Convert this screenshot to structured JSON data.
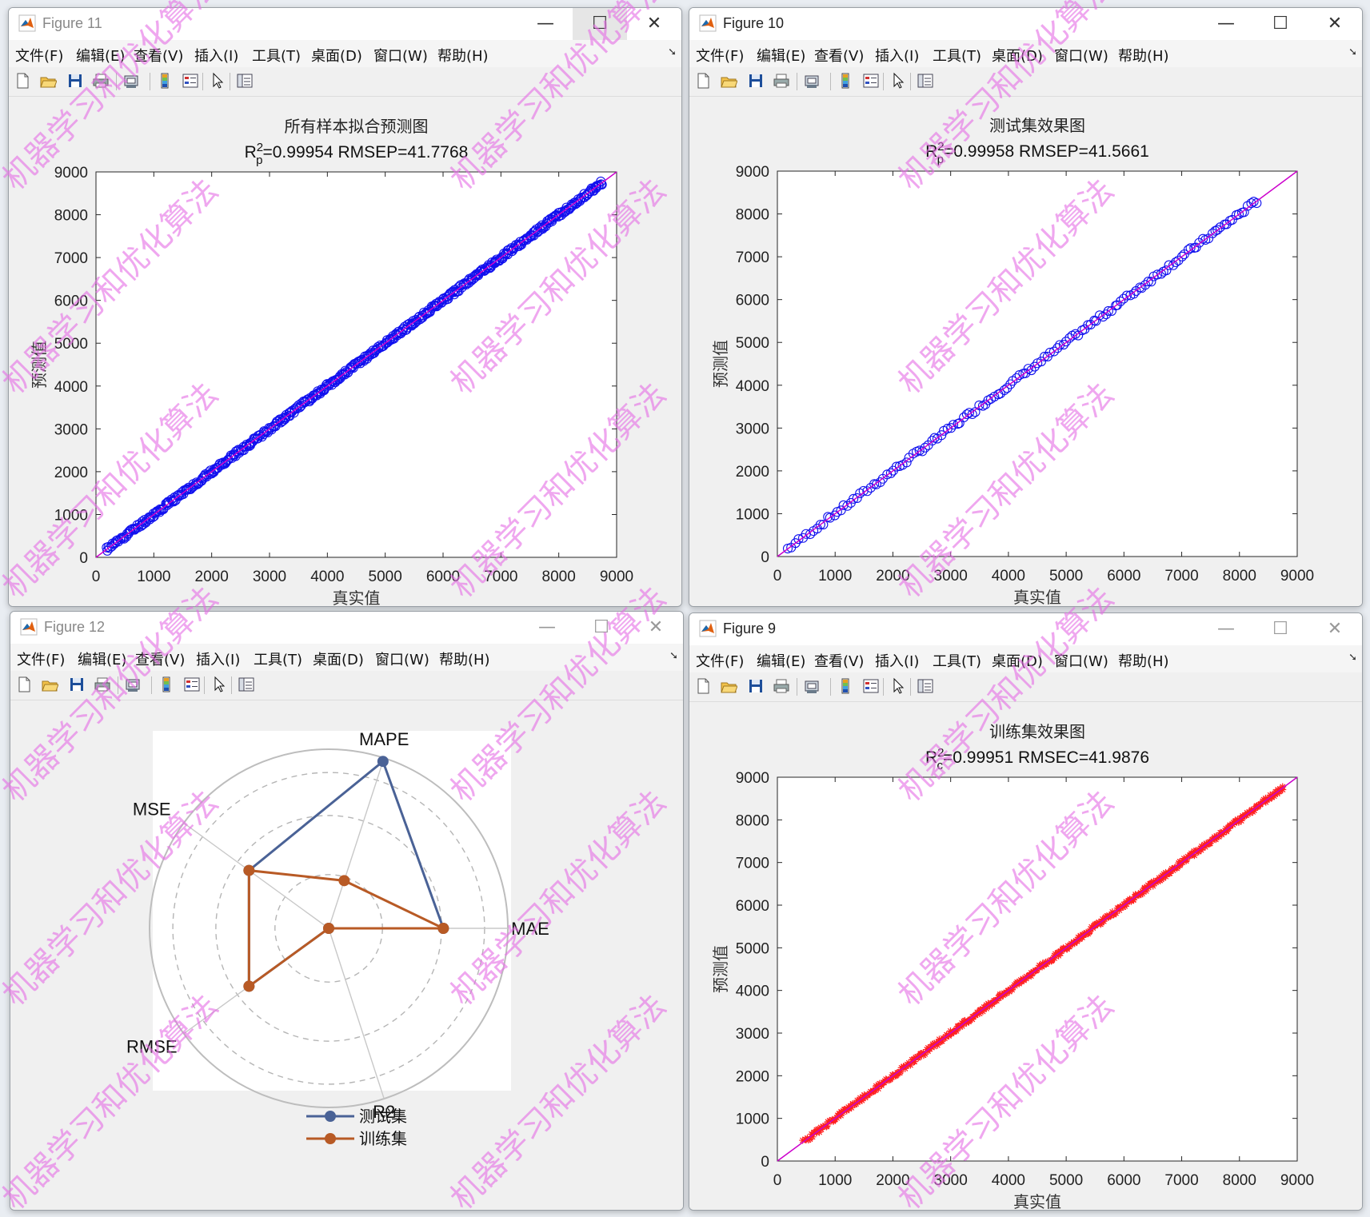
{
  "windows": {
    "fig11": {
      "title": "Figure 11",
      "chart_title": "所有样本拟合预测图",
      "subtitle_r": "R",
      "subtitle_sup": "2",
      "subtitle_sub": "p",
      "subtitle_rest": "=0.99954  RMSEP=41.7768",
      "xlabel": "真实值",
      "ylabel": "预测值"
    },
    "fig10": {
      "title": "Figure 10",
      "chart_title": "测试集效果图",
      "subtitle_r": "R",
      "subtitle_sup": "2",
      "subtitle_sub": "p",
      "subtitle_rest": "=0.99958  RMSEP=41.5661",
      "xlabel": "真实值",
      "ylabel": "预测值"
    },
    "fig12": {
      "title": "Figure 12",
      "legend": [
        "测试集",
        "训练集"
      ]
    },
    "fig9": {
      "title": "Figure 9",
      "chart_title": "训练集效果图",
      "subtitle_r": "R",
      "subtitle_sup": "2",
      "subtitle_sub": "c",
      "subtitle_rest": "=0.99951  RMSEC=41.9876",
      "xlabel": "真实值",
      "ylabel": "预测值"
    }
  },
  "menu": [
    "文件(F)",
    "编辑(E)",
    "查看(V)",
    "插入(I)",
    "工具(T)",
    "桌面(D)",
    "窗口(W)",
    "帮助(H)"
  ],
  "toolbar_icons": [
    "new-file-icon",
    "open-folder-icon",
    "save-icon",
    "print-icon",
    "print-preview-icon",
    "colorbar-icon",
    "legend-icon",
    "pointer-icon",
    "property-editor-icon"
  ],
  "window_controls": {
    "minimize": "—",
    "maximize": "☐",
    "close": "✕"
  },
  "watermark": "机器学习和优化算法",
  "colors": {
    "scatter_blue": "#1010ee",
    "fit_line": "#cc00cc",
    "train_red": "#ff2020",
    "radar_test": "#4a6296",
    "radar_train": "#b85a25",
    "watermark": "#e46de4"
  },
  "chart_data": [
    {
      "id": "fig11",
      "type": "scatter",
      "title": "所有样本拟合预测图",
      "subtitle": "R²p=0.99954  RMSEP=41.7768",
      "xlabel": "真实值",
      "ylabel": "预测值",
      "xlim": [
        0,
        9000
      ],
      "ylim": [
        0,
        9000
      ],
      "xticks": [
        0,
        1000,
        2000,
        3000,
        4000,
        5000,
        6000,
        7000,
        8000,
        9000
      ],
      "yticks": [
        0,
        1000,
        2000,
        3000,
        4000,
        5000,
        6000,
        7000,
        8000,
        9000
      ],
      "marker": "circle",
      "color": "#1010ee",
      "range": [
        180,
        8750
      ],
      "reference_line": [
        [
          0,
          0
        ],
        [
          9000,
          9000
        ]
      ]
    },
    {
      "id": "fig10",
      "type": "scatter",
      "title": "测试集效果图",
      "subtitle": "R²p=0.99958  RMSEP=41.5661",
      "xlabel": "真实值",
      "ylabel": "预测值",
      "xlim": [
        0,
        9000
      ],
      "ylim": [
        0,
        9000
      ],
      "xticks": [
        0,
        1000,
        2000,
        3000,
        4000,
        5000,
        6000,
        7000,
        8000,
        9000
      ],
      "yticks": [
        0,
        1000,
        2000,
        3000,
        4000,
        5000,
        6000,
        7000,
        8000,
        9000
      ],
      "marker": "circle",
      "color": "#1010ee",
      "range": [
        180,
        8300
      ],
      "reference_line": [
        [
          0,
          0
        ],
        [
          9000,
          9000
        ]
      ]
    },
    {
      "id": "fig9",
      "type": "scatter",
      "title": "训练集效果图",
      "subtitle": "R²c=0.99951  RMSEC=41.9876",
      "xlabel": "真实值",
      "ylabel": "预测值",
      "xlim": [
        0,
        9000
      ],
      "ylim": [
        0,
        9000
      ],
      "xticks": [
        0,
        1000,
        2000,
        3000,
        4000,
        5000,
        6000,
        7000,
        8000,
        9000
      ],
      "yticks": [
        0,
        1000,
        2000,
        3000,
        4000,
        5000,
        6000,
        7000,
        8000,
        9000
      ],
      "marker": "asterisk",
      "color": "#ff2020",
      "range": [
        450,
        8750
      ],
      "reference_line": [
        [
          0,
          0
        ],
        [
          9000,
          9000
        ]
      ]
    },
    {
      "id": "fig12",
      "type": "radar",
      "axes": [
        "MAPE",
        "MAE",
        "R2",
        "RMSE",
        "MSE"
      ],
      "series": [
        {
          "name": "测试集",
          "values": [
            0.98,
            0.64,
            0.0,
            0.55,
            0.55
          ]
        },
        {
          "name": "训练集",
          "values": [
            0.28,
            0.64,
            0.0,
            0.55,
            0.55
          ]
        }
      ]
    }
  ]
}
